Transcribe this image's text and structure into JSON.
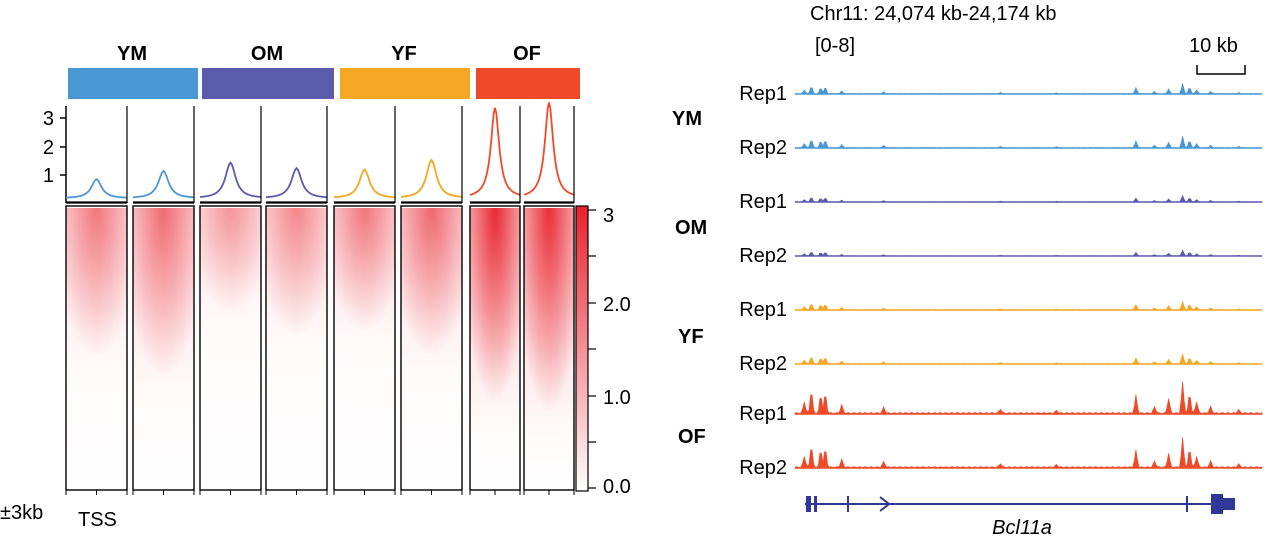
{
  "colors": {
    "YM": "#4a98d3",
    "OM": "#5b5bab",
    "YF": "#f5a623",
    "OF": "#ee4a2a",
    "heat": "#e8212c",
    "gene": "#2f3797"
  },
  "groups": [
    "YM",
    "OM",
    "YF",
    "OF"
  ],
  "profile": {
    "yticks": [
      "1",
      "2",
      "3"
    ],
    "ylim": [
      0,
      3.5
    ],
    "peaks": [
      0.7,
      1.0,
      1.3,
      1.1,
      1.05,
      1.4,
      3.3,
      3.5
    ]
  },
  "heatmap": {
    "columns": [
      "YM-Rep1",
      "YM-Rep2",
      "OM-Rep1",
      "OM-Rep2",
      "YF-Rep1",
      "YF-Rep2",
      "OF-Rep1",
      "OF-Rep2"
    ],
    "intensity": [
      0.55,
      0.6,
      0.42,
      0.48,
      0.55,
      0.62,
      0.95,
      0.92
    ],
    "extent": [
      0.42,
      0.48,
      0.3,
      0.36,
      0.35,
      0.42,
      0.55,
      0.58
    ],
    "x_range_label": "±3kb",
    "x_center_label": "TSS",
    "colorbar": {
      "ticks": [
        "3",
        "2.0",
        "1.0",
        "0.0"
      ],
      "range": [
        0,
        3
      ]
    }
  },
  "browser": {
    "region": "Chr11: 24,074 kb-24,174 kb",
    "range": "[0-8]",
    "scale": "10 kb",
    "tracks": [
      {
        "group": "YM",
        "rep": "Rep1",
        "scale": 0.18
      },
      {
        "group": "YM",
        "rep": "Rep2",
        "scale": 0.2
      },
      {
        "group": "OM",
        "rep": "Rep1",
        "scale": 0.11
      },
      {
        "group": "OM",
        "rep": "Rep2",
        "scale": 0.1
      },
      {
        "group": "YF",
        "rep": "Rep1",
        "scale": 0.15
      },
      {
        "group": "YF",
        "rep": "Rep2",
        "scale": 0.17
      },
      {
        "group": "OF",
        "rep": "Rep1",
        "scale": 0.55
      },
      {
        "group": "OF",
        "rep": "Rep2",
        "scale": 0.52
      }
    ],
    "peaks": [
      [
        0.02,
        0.35
      ],
      [
        0.035,
        0.7
      ],
      [
        0.055,
        0.55
      ],
      [
        0.065,
        0.6
      ],
      [
        0.1,
        0.25
      ],
      [
        0.19,
        0.18
      ],
      [
        0.44,
        0.12
      ],
      [
        0.56,
        0.08
      ],
      [
        0.73,
        0.55
      ],
      [
        0.77,
        0.2
      ],
      [
        0.8,
        0.45
      ],
      [
        0.83,
        0.95
      ],
      [
        0.845,
        0.6
      ],
      [
        0.86,
        0.35
      ],
      [
        0.89,
        0.2
      ],
      [
        0.95,
        0.1
      ]
    ],
    "gene": "Bcl11a"
  },
  "chart_data": {
    "type": "heatmap",
    "categories": [
      "YM",
      "OM",
      "YF",
      "OF"
    ],
    "profile_ylim": [
      0,
      3.5
    ],
    "colorbar_range": [
      0,
      3
    ],
    "browser_region": "Chr11: 24,074 kb-24,174 kb",
    "browser_range": [
      0,
      8
    ]
  }
}
